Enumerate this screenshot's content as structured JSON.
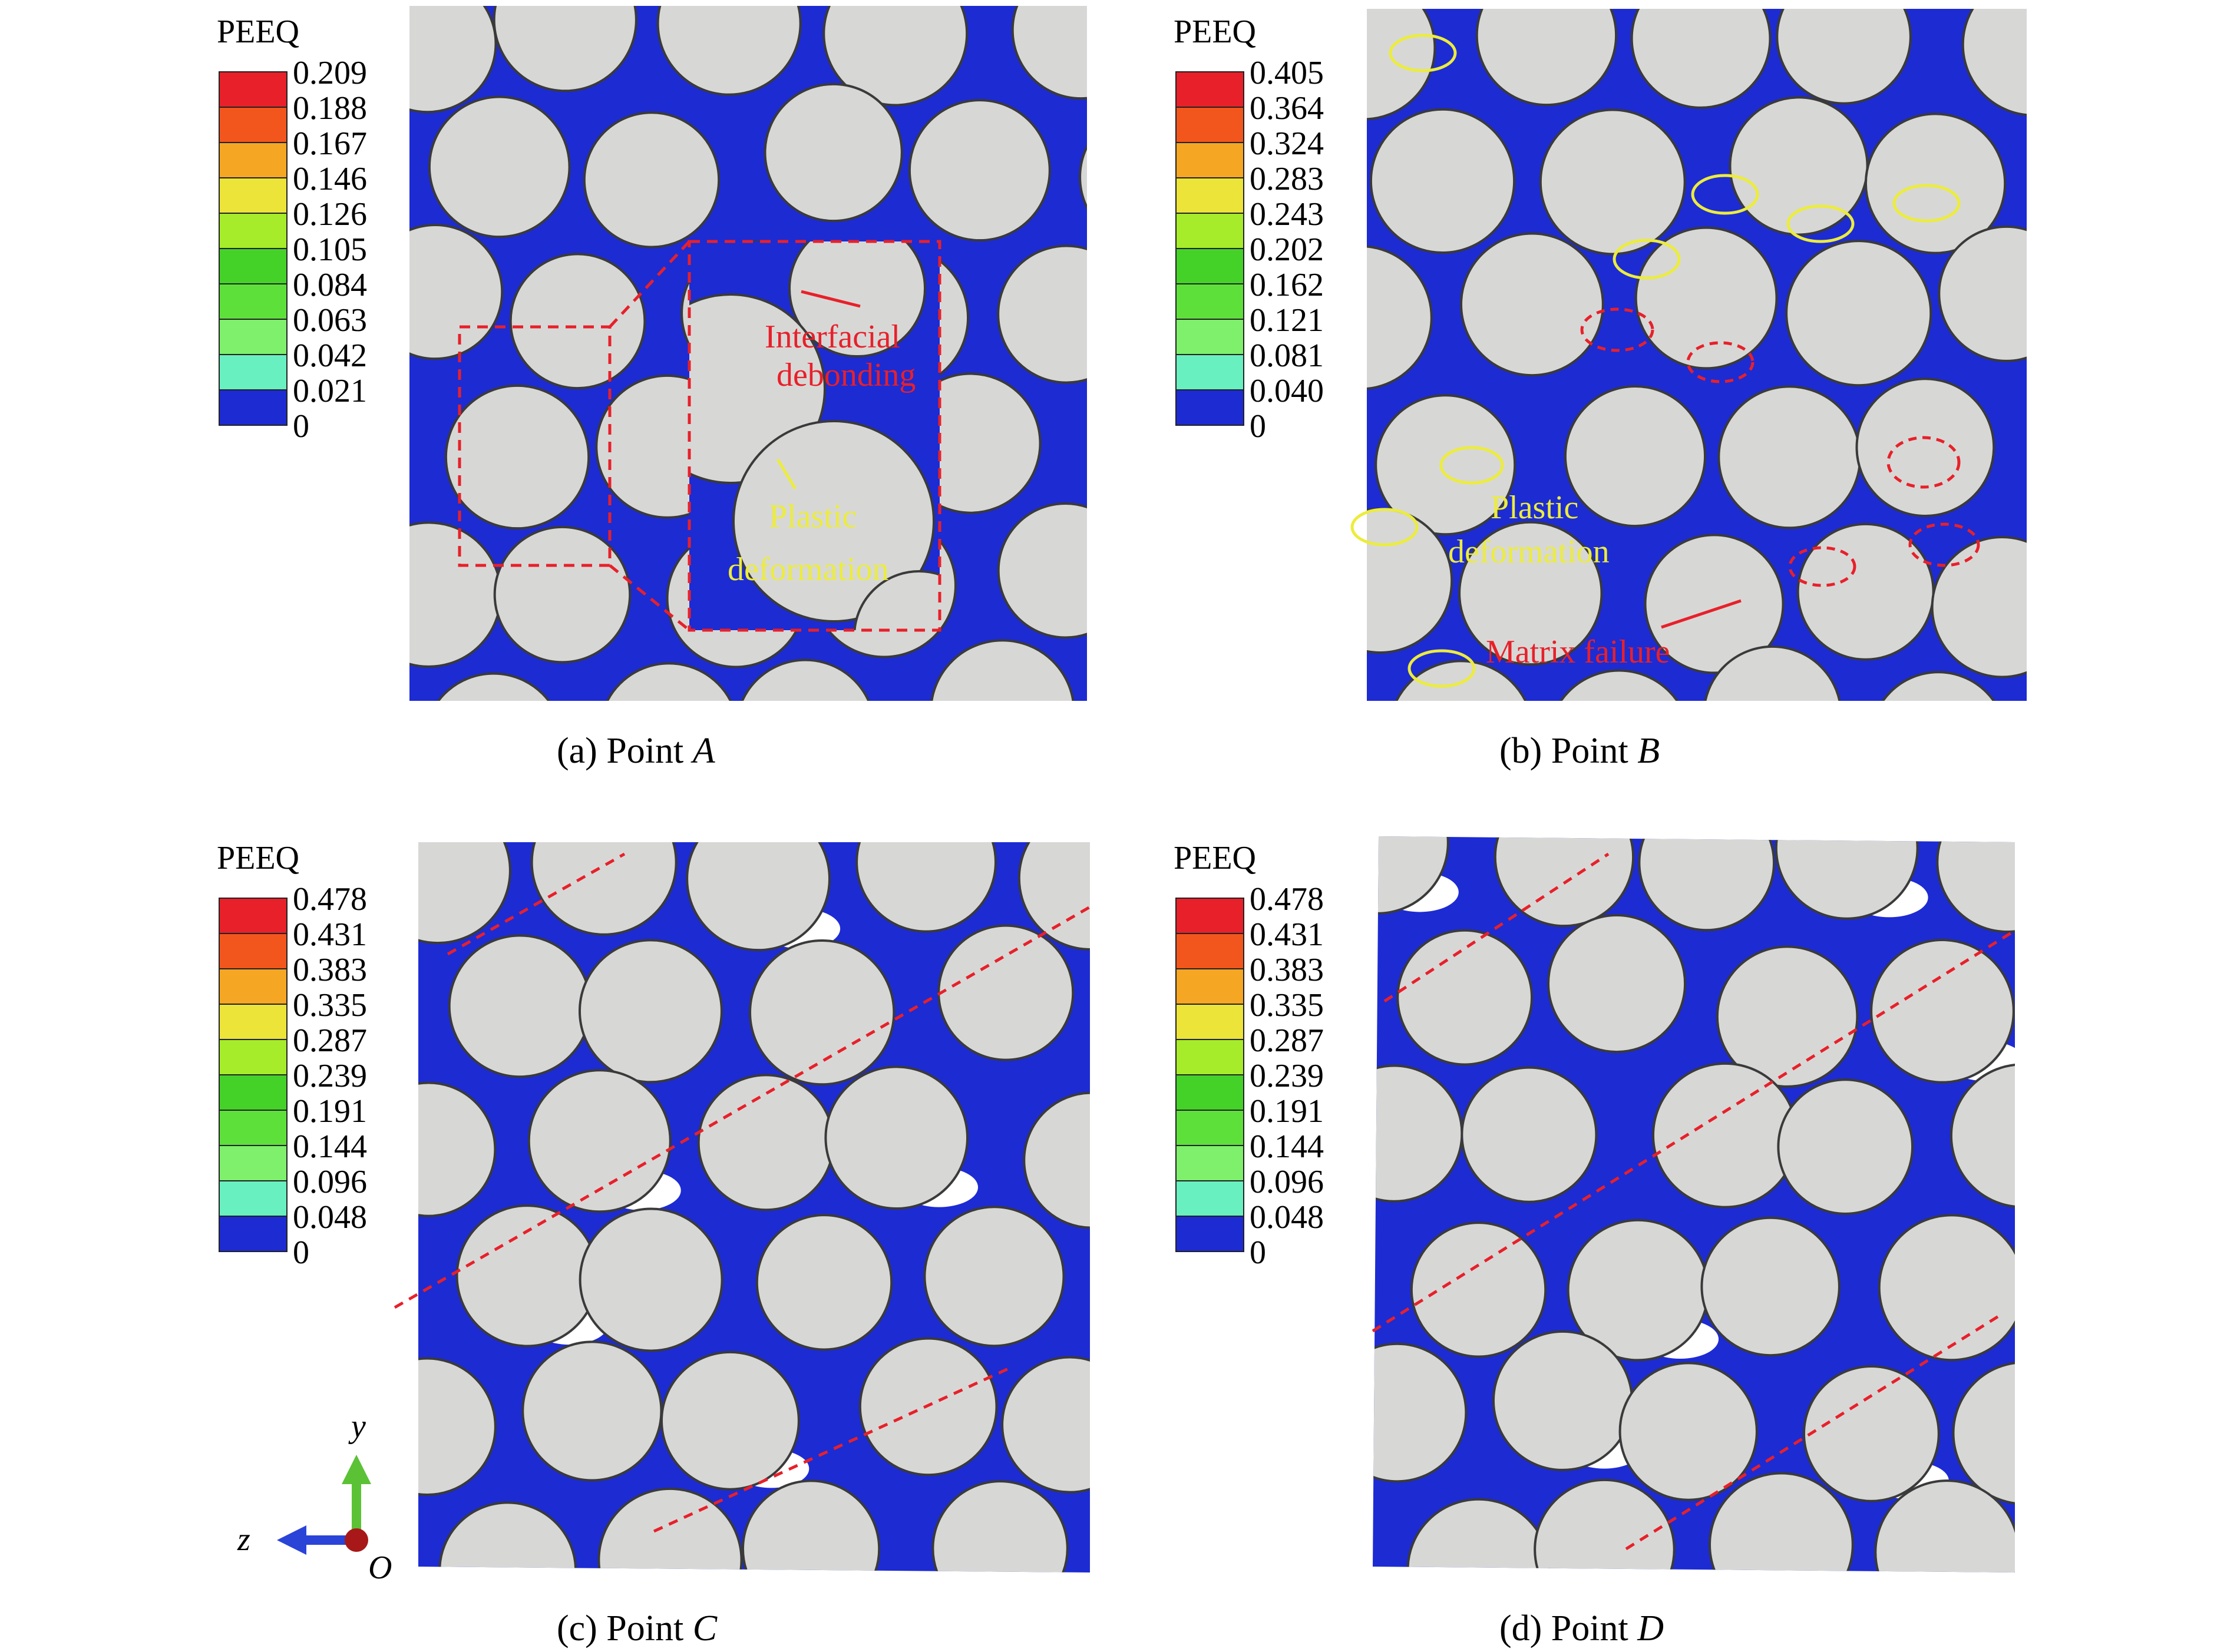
{
  "colors": {
    "matrix": "#1d2bd3",
    "fiber": "#d7d8d6",
    "fiber_edge": "#3a3a3a",
    "crack_void": "#ffffff",
    "annotation_red": "#e8202a",
    "annotation_yellow": "#ecec3c",
    "legend_bands": [
      "#1d2bd3",
      "#2f6ee8",
      "#3fb8e0",
      "#68f0c0",
      "#7ef06c",
      "#5ee03a",
      "#44d228",
      "#a6ec2a",
      "#ece438",
      "#f5a623",
      "#f2561d",
      "#e8202a"
    ]
  },
  "panels": [
    {
      "id": "a",
      "caption_prefix": "(a) Point ",
      "caption_point": "A",
      "legend_title": "PEEQ",
      "legend_values": [
        "0.209",
        "0.188",
        "0.167",
        "0.146",
        "0.126",
        "0.105",
        "0.084",
        "0.063",
        "0.042",
        "0.021",
        "0"
      ],
      "annotations_red": [
        "Interfacial",
        "debonding"
      ],
      "annotations_yellow": [
        "Plastic",
        "deformation"
      ]
    },
    {
      "id": "b",
      "caption_prefix": "(b) Point ",
      "caption_point": "B",
      "legend_title": "PEEQ",
      "legend_values": [
        "0.405",
        "0.364",
        "0.324",
        "0.283",
        "0.243",
        "0.202",
        "0.162",
        "0.121",
        "0.081",
        "0.040",
        "0"
      ],
      "annotations_yellow": [
        "Plastic",
        "deformation"
      ],
      "annotations_red": [
        "Matrix failure"
      ]
    },
    {
      "id": "c",
      "caption_prefix": "(c) Point ",
      "caption_point": "C",
      "legend_title": "PEEQ",
      "legend_values": [
        "0.478",
        "0.431",
        "0.383",
        "0.335",
        "0.287",
        "0.239",
        "0.191",
        "0.144",
        "0.096",
        "0.048",
        "0"
      ]
    },
    {
      "id": "d",
      "caption_prefix": "(d) Point ",
      "caption_point": "D",
      "legend_title": "PEEQ",
      "legend_values": [
        "0.478",
        "0.431",
        "0.383",
        "0.335",
        "0.287",
        "0.239",
        "0.191",
        "0.144",
        "0.096",
        "0.048",
        "0"
      ]
    }
  ],
  "axes_triad": {
    "y_label": "y",
    "z_label": "z",
    "origin_label": "O"
  }
}
